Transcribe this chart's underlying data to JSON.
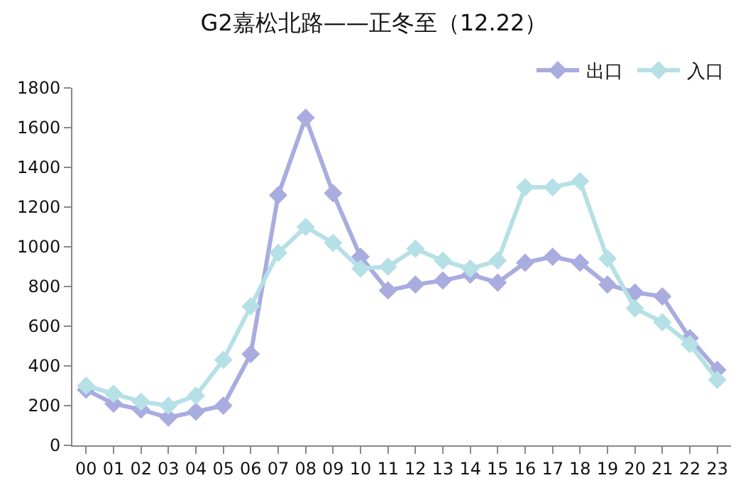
{
  "chart_data": {
    "type": "line",
    "title": "G2嘉松北路——正冬至（12.22）",
    "categories": [
      "00",
      "01",
      "02",
      "03",
      "04",
      "05",
      "06",
      "07",
      "08",
      "09",
      "10",
      "11",
      "12",
      "13",
      "14",
      "15",
      "16",
      "17",
      "18",
      "19",
      "20",
      "21",
      "22",
      "23"
    ],
    "series": [
      {
        "name": "出口",
        "color": "#a9acdf",
        "values": [
          280,
          210,
          180,
          140,
          170,
          200,
          460,
          1260,
          1650,
          1270,
          950,
          780,
          810,
          830,
          860,
          820,
          920,
          950,
          920,
          810,
          770,
          750,
          540,
          380
        ]
      },
      {
        "name": "入口",
        "color": "#b5e0e6",
        "values": [
          300,
          260,
          220,
          200,
          250,
          430,
          700,
          970,
          1100,
          1020,
          890,
          900,
          990,
          930,
          890,
          930,
          1300,
          1300,
          1330,
          940,
          690,
          620,
          510,
          330
        ]
      }
    ],
    "ylim": [
      0,
      1800
    ],
    "yticks": [
      0,
      200,
      400,
      600,
      800,
      1000,
      1200,
      1400,
      1600,
      1800
    ],
    "legend": "top right",
    "marker": "diamond",
    "line_style": "solid"
  }
}
